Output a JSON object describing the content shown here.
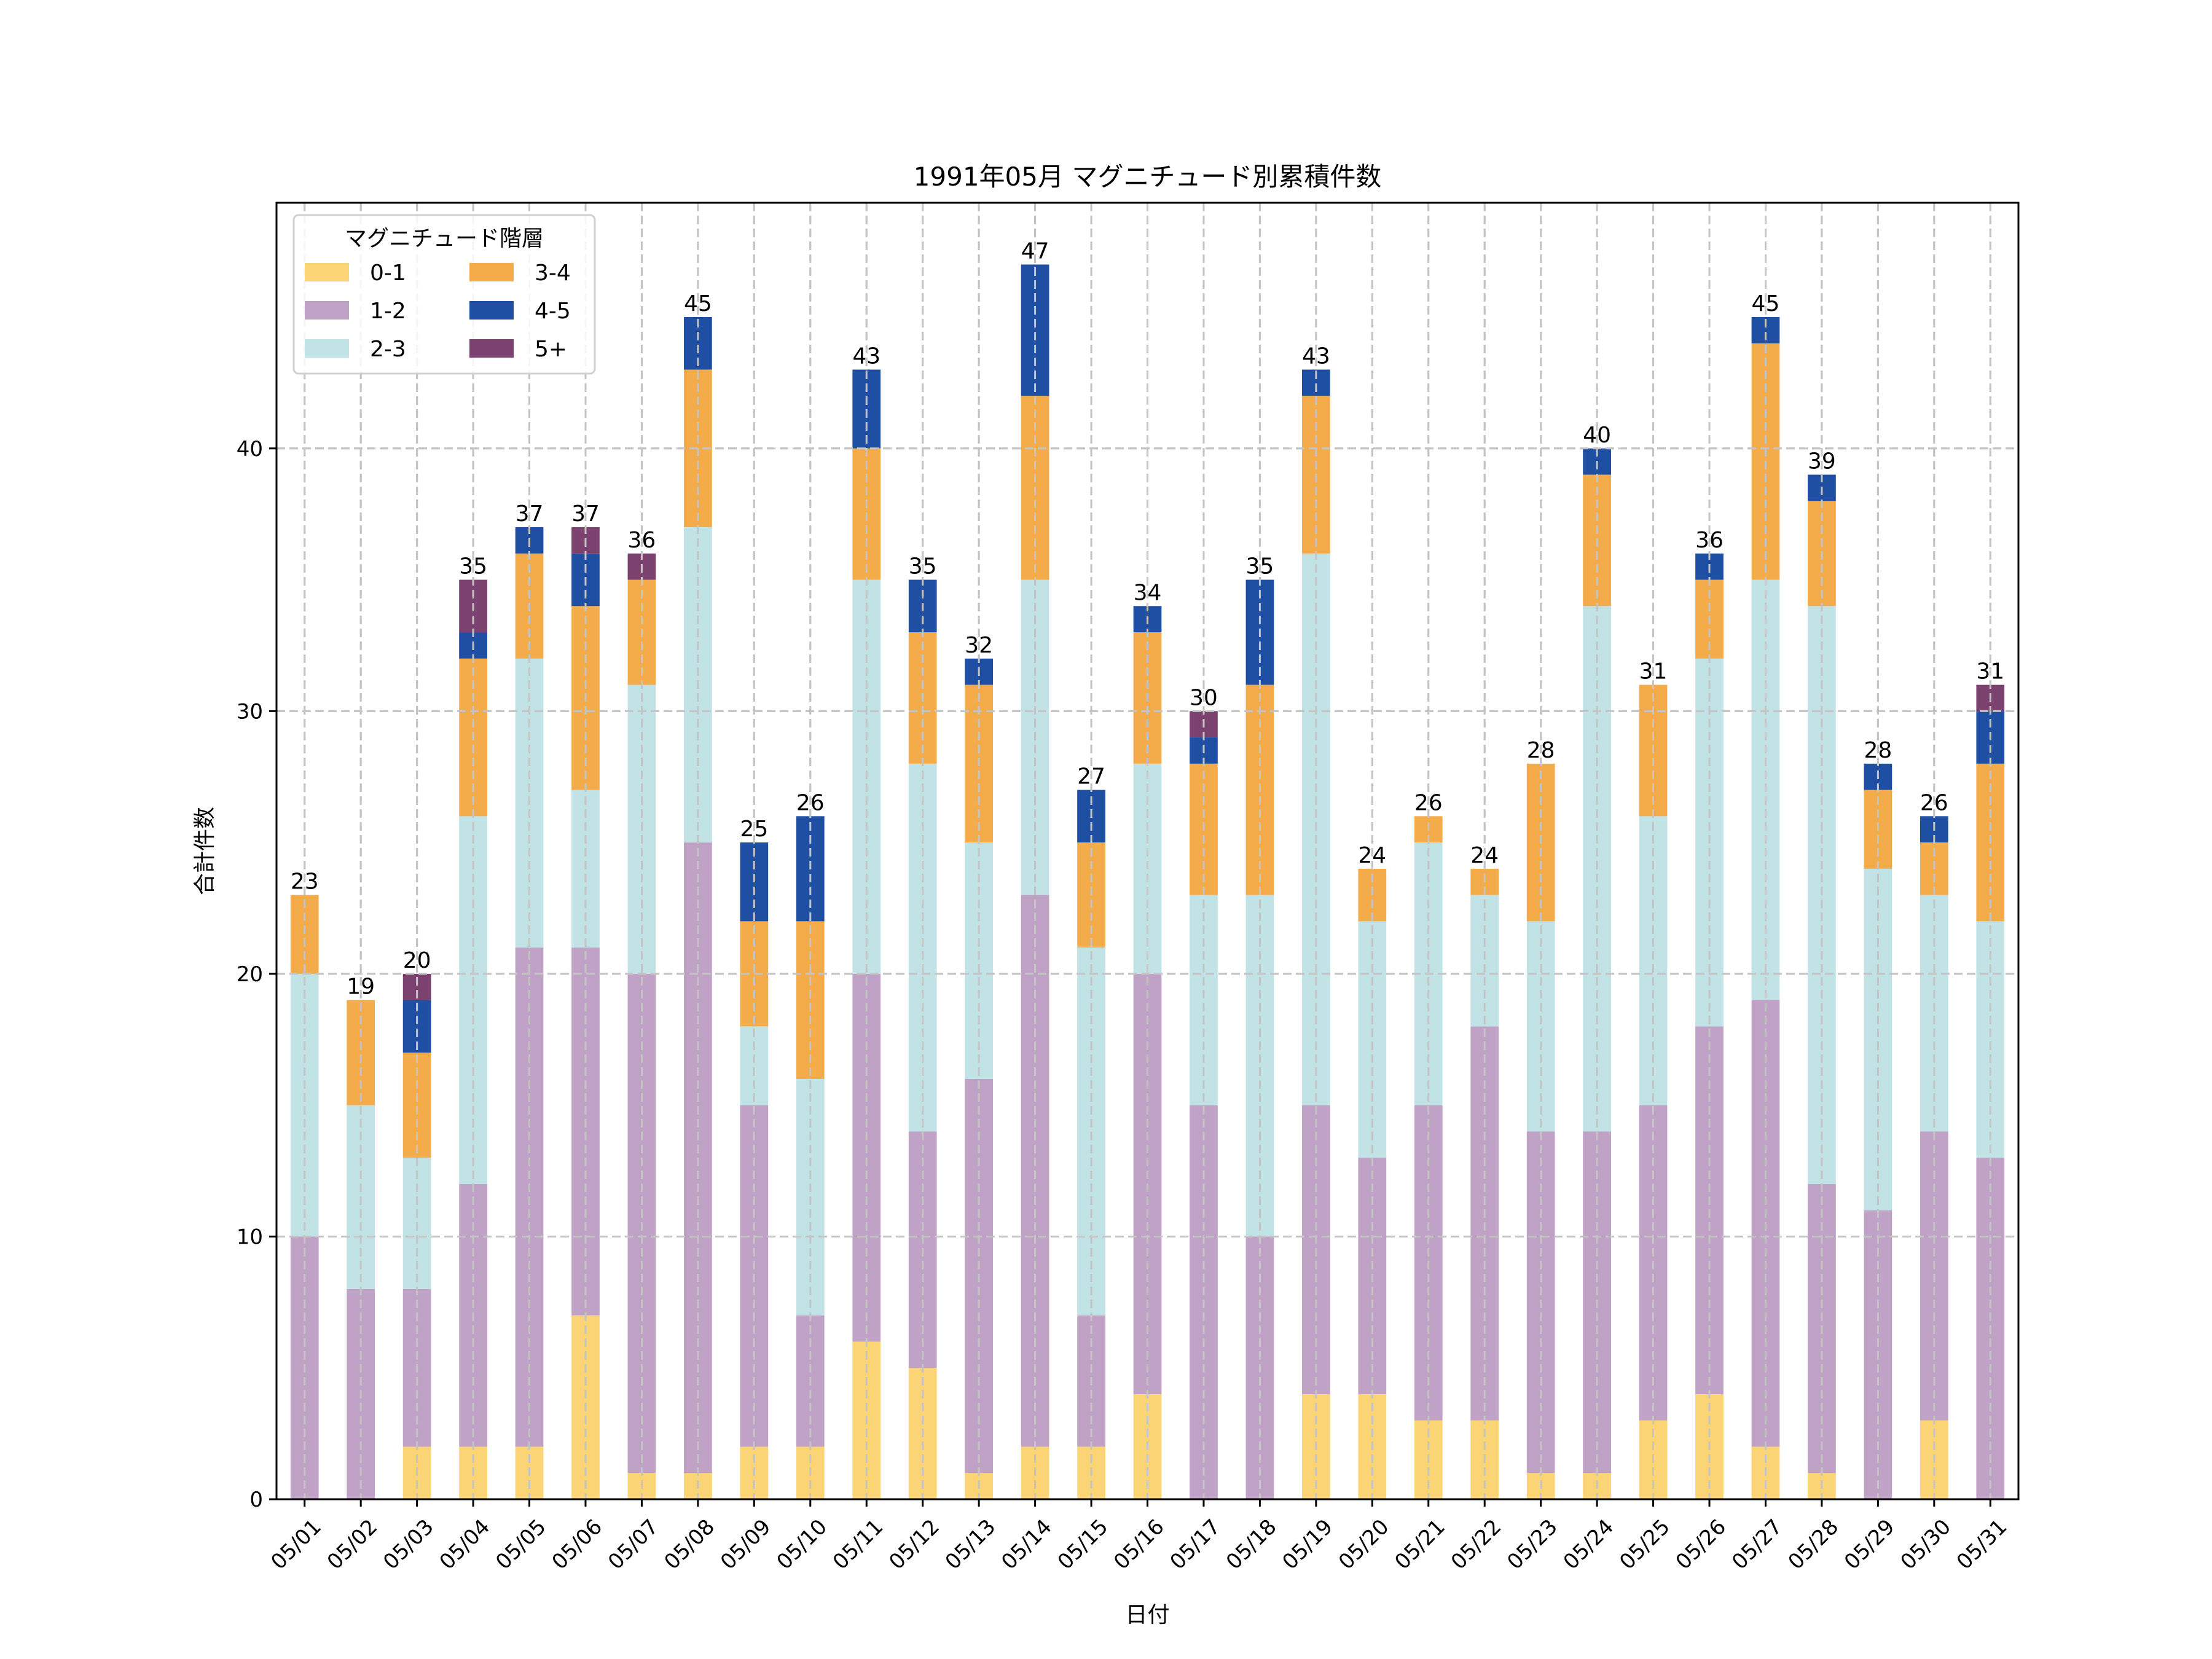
{
  "chart_data": {
    "type": "bar",
    "stacked": true,
    "title": "1991年05月 マグニチュード別累積件数",
    "xlabel": "日付",
    "ylabel": "合計件数",
    "ylim": [
      0,
      49.35
    ],
    "yticks": [
      0,
      10,
      20,
      30,
      40
    ],
    "grid": true,
    "legend": {
      "title": "マグニチュード階層",
      "placement": "top-left",
      "columns": 2
    },
    "categories": [
      "05/01",
      "05/02",
      "05/03",
      "05/04",
      "05/05",
      "05/06",
      "05/07",
      "05/08",
      "05/09",
      "05/10",
      "05/11",
      "05/12",
      "05/13",
      "05/14",
      "05/15",
      "05/16",
      "05/17",
      "05/18",
      "05/19",
      "05/20",
      "05/21",
      "05/22",
      "05/23",
      "05/24",
      "05/25",
      "05/26",
      "05/27",
      "05/28",
      "05/29",
      "05/30",
      "05/31"
    ],
    "series": [
      {
        "name": "0-1",
        "color": "#fad475",
        "values": [
          0,
          0,
          2,
          2,
          2,
          7,
          1,
          1,
          2,
          2,
          6,
          5,
          1,
          2,
          2,
          4,
          0,
          0,
          4,
          4,
          3,
          3,
          1,
          1,
          3,
          4,
          2,
          1,
          0,
          3,
          0
        ]
      },
      {
        "name": "1-2",
        "color": "#c0a2c7",
        "values": [
          10,
          8,
          6,
          10,
          19,
          14,
          19,
          24,
          13,
          5,
          14,
          9,
          15,
          21,
          5,
          16,
          15,
          10,
          11,
          9,
          12,
          15,
          13,
          13,
          12,
          14,
          17,
          11,
          11,
          11,
          13
        ]
      },
      {
        "name": "2-3",
        "color": "#c1e3e6",
        "values": [
          10,
          7,
          5,
          14,
          11,
          6,
          11,
          12,
          3,
          9,
          15,
          14,
          9,
          12,
          14,
          8,
          8,
          13,
          21,
          9,
          10,
          5,
          8,
          20,
          11,
          14,
          16,
          22,
          13,
          9,
          9
        ]
      },
      {
        "name": "3-4",
        "color": "#f4ab4a",
        "values": [
          3,
          4,
          4,
          6,
          4,
          7,
          4,
          6,
          4,
          6,
          5,
          5,
          6,
          7,
          4,
          5,
          5,
          8,
          6,
          2,
          1,
          1,
          6,
          5,
          5,
          3,
          9,
          4,
          3,
          2,
          6
        ]
      },
      {
        "name": "4-5",
        "color": "#1f4fa2",
        "values": [
          0,
          0,
          2,
          1,
          1,
          2,
          0,
          2,
          3,
          4,
          3,
          2,
          1,
          5,
          2,
          1,
          1,
          4,
          1,
          0,
          0,
          0,
          0,
          1,
          0,
          1,
          1,
          1,
          1,
          1,
          2
        ]
      },
      {
        "name": "5+",
        "color": "#7b416f",
        "values": [
          0,
          0,
          1,
          2,
          0,
          1,
          1,
          0,
          0,
          0,
          0,
          0,
          0,
          0,
          0,
          0,
          1,
          0,
          0,
          0,
          0,
          0,
          0,
          0,
          0,
          0,
          0,
          0,
          0,
          0,
          1
        ]
      }
    ],
    "totals": [
      23,
      19,
      20,
      35,
      37,
      37,
      36,
      45,
      25,
      26,
      43,
      35,
      32,
      47,
      27,
      34,
      30,
      35,
      43,
      24,
      26,
      24,
      28,
      40,
      31,
      36,
      45,
      39,
      28,
      26,
      31
    ]
  }
}
